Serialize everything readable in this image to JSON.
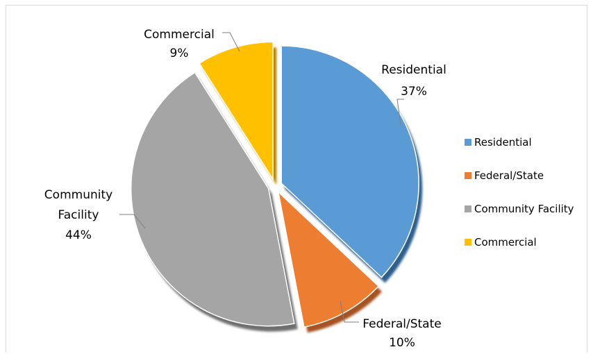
{
  "chart_data": {
    "type": "pie",
    "title": "",
    "categories": [
      "Residential",
      "Federal/State",
      "Community Facility",
      "Commercial"
    ],
    "values": [
      37,
      10,
      44,
      9
    ],
    "value_labels": [
      "37%",
      "10%",
      "44%",
      "9%"
    ],
    "colors": [
      "#5b9bd5",
      "#ed7d31",
      "#a5a5a5",
      "#ffc000"
    ],
    "exploded": true,
    "style": "3d-shadow",
    "legend": {
      "position": "right",
      "items": [
        "Residential",
        "Federal/State",
        "Community Facility",
        "Commercial"
      ]
    },
    "data_labels": [
      {
        "lines": [
          "Residential"
        ],
        "value": "37%"
      },
      {
        "lines": [
          "Federal/State"
        ],
        "value": "10%"
      },
      {
        "lines": [
          "Community",
          "Facility"
        ],
        "value": "44%"
      },
      {
        "lines": [
          "Commercial"
        ],
        "value": "9%"
      }
    ]
  }
}
